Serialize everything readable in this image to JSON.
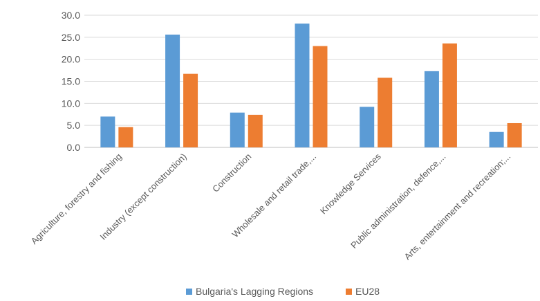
{
  "chart_data": {
    "type": "bar",
    "title": "",
    "xlabel": "",
    "ylabel": "",
    "ylim": [
      0,
      30
    ],
    "yticks": [
      "0.0",
      "5.0",
      "10.0",
      "15.0",
      "20.0",
      "25.0",
      "30.0"
    ],
    "categories": [
      "Agriculture, forestry and fishing",
      "Industry (except construction)",
      "Construction",
      "Wholesale and retail trade,...",
      "Knowledge Services",
      "Public administration, defence,...",
      "Arts, entertainment and recreation;..."
    ],
    "series": [
      {
        "name": "Bulgaria's Lagging Regions",
        "color": "#5b9bd5",
        "values": [
          7.0,
          25.6,
          7.9,
          28.1,
          9.2,
          17.3,
          3.5
        ]
      },
      {
        "name": "EU28",
        "color": "#ed7d31",
        "values": [
          4.6,
          16.7,
          7.4,
          23.0,
          15.8,
          23.6,
          5.5
        ]
      }
    ],
    "grid": true,
    "legend_position": "bottom"
  }
}
